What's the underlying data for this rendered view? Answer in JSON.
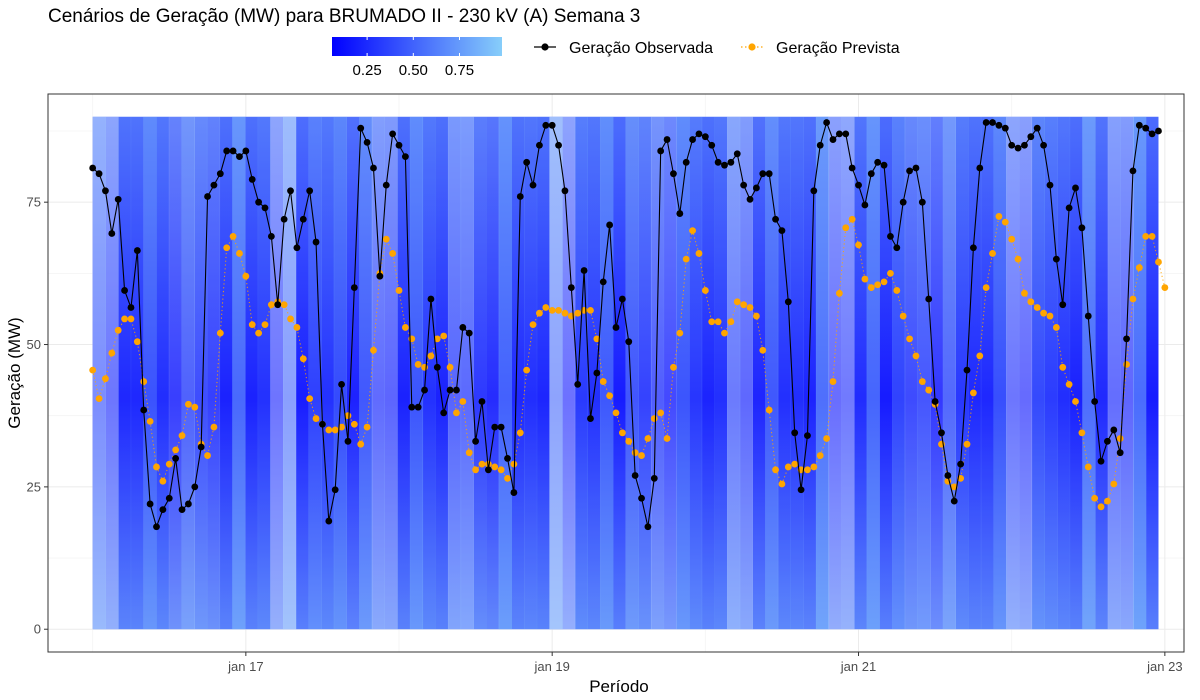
{
  "chart_data": {
    "type": "line",
    "title": "Cenários de Geração (MW) para BRUMADO II - 230 kV (A) Semana 3",
    "xlabel": "Período",
    "ylabel": "Geração (MW)",
    "x_start": "2024-01-16 00:00",
    "x_step_hours": 1,
    "x_ticks": [
      {
        "label": "jan 17",
        "x": "2024-01-17 00:00"
      },
      {
        "label": "jan 19",
        "x": "2024-01-19 00:00"
      },
      {
        "label": "jan 21",
        "x": "2024-01-21 00:00"
      },
      {
        "label": "jan 23",
        "x": "2024-01-23 00:00"
      }
    ],
    "xlim": [
      "2024-01-15 17:00",
      "2024-01-23 03:00"
    ],
    "y_ticks": [
      0,
      25,
      50,
      75
    ],
    "ylim": [
      -4,
      94
    ],
    "grid": true,
    "legend": {
      "placement": "top",
      "colorbar": {
        "labels": [
          "0.25",
          "0.50",
          "0.75"
        ],
        "breaks": [
          0.25,
          0.5,
          0.75
        ],
        "low_color": "#0000ff",
        "high_color": "#87cefa"
      },
      "entries": [
        "Geração Observada",
        "Geração Prevista"
      ]
    },
    "scenario_band": {
      "min": 0,
      "max": 90,
      "low_color": "#0000ff",
      "high_color": "#87cefa"
    },
    "series": [
      {
        "name": "Geração Observada",
        "color": "#000000",
        "line_style": "solid",
        "values": [
          81,
          80,
          77,
          69.5,
          75.5,
          59.5,
          56.5,
          66.5,
          38.5,
          22,
          18,
          21,
          23,
          30,
          21,
          22,
          25,
          32,
          76,
          78,
          80,
          84,
          84,
          83,
          84,
          79,
          75,
          74,
          69,
          57,
          72,
          77,
          67,
          72,
          77,
          68,
          36,
          19,
          24.5,
          43,
          33,
          60,
          88,
          85.5,
          81,
          62,
          78,
          87,
          85,
          83,
          39,
          39,
          42,
          58,
          46,
          38,
          42,
          42,
          53,
          52,
          33,
          40,
          28,
          35.5,
          35.5,
          30,
          24,
          76,
          82,
          78,
          85,
          88.5,
          88.5,
          85,
          77,
          60,
          43,
          63,
          37,
          45,
          61,
          71,
          53,
          58,
          50.5,
          27,
          23,
          18,
          26.5,
          84,
          86,
          80,
          73,
          82,
          86,
          87,
          86.5,
          85,
          82,
          81.5,
          82,
          83.5,
          78,
          75.5,
          77.5,
          80,
          80,
          72,
          70,
          57.5,
          34.5,
          24.5,
          34,
          77,
          85,
          89,
          86,
          87,
          87,
          81,
          78,
          74.5,
          80,
          82,
          81.5,
          69,
          67,
          75,
          80.5,
          81,
          75,
          58,
          40,
          34.5,
          27,
          22.5,
          29,
          45.5,
          67,
          81,
          89,
          89,
          88.5,
          88,
          85,
          84.5,
          85,
          86.5,
          88,
          85,
          78,
          65,
          57,
          74,
          77.5,
          70.5,
          55,
          40,
          29.5,
          33,
          35,
          31,
          51,
          80.5,
          88.5,
          88,
          87,
          87.5
        ]
      },
      {
        "name": "Geração Prevista",
        "color": "#ffa500",
        "line_style": "dotted",
        "values": [
          45.5,
          40.5,
          44,
          48.5,
          52.5,
          54.5,
          54.5,
          50.5,
          43.5,
          36.5,
          28.5,
          26,
          29,
          31.5,
          34,
          39.5,
          39,
          32.5,
          30.5,
          35.5,
          52,
          67,
          69,
          66,
          62,
          53.5,
          52,
          53.5,
          57,
          57.5,
          57,
          54.5,
          53,
          47.5,
          40.5,
          37,
          36,
          35,
          35,
          35.5,
          37.5,
          36,
          32.5,
          35.5,
          49,
          62.5,
          68.5,
          66,
          59.5,
          53,
          51,
          46.5,
          46,
          48,
          51,
          51.5,
          46,
          38,
          40,
          31,
          28,
          29,
          29,
          28.5,
          28,
          26.5,
          29,
          34.5,
          45.5,
          53.5,
          55.5,
          56.5,
          56,
          56,
          55.5,
          55,
          55.5,
          56,
          56,
          51,
          43.5,
          41,
          38,
          34.5,
          33,
          31,
          30.5,
          33.5,
          37,
          38,
          33.5,
          46,
          52,
          65,
          70,
          66,
          59.5,
          54,
          54,
          52,
          54,
          57.5,
          57,
          56.5,
          55,
          49,
          38.5,
          28,
          25.5,
          28.5,
          29,
          28,
          28,
          28.5,
          30.5,
          33.5,
          43.5,
          59,
          70.5,
          72,
          67.5,
          61.5,
          60,
          60.5,
          61,
          62.5,
          59.5,
          55,
          51,
          48,
          43.5,
          42,
          39.5,
          32.5,
          26,
          25,
          26.5,
          32.5,
          41.5,
          48,
          60,
          66,
          72.5,
          71.5,
          68.5,
          65,
          59,
          57.5,
          56.5,
          55.5,
          55,
          53,
          46,
          43,
          40,
          34.5,
          28.5,
          23,
          21.5,
          22.5,
          25.5,
          33.5,
          46.5,
          58,
          63.5,
          69,
          69,
          64.5,
          60
        ]
      }
    ]
  }
}
